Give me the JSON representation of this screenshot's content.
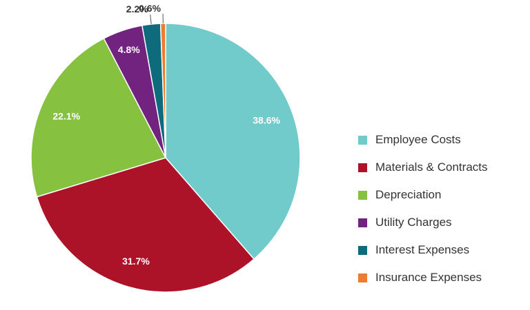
{
  "chart_data": {
    "type": "pie",
    "title": "",
    "slices": [
      {
        "label": "Employee Costs",
        "value": 38.6,
        "display": "38.6%",
        "color": "#72CBCB",
        "label_color": "#ffffff"
      },
      {
        "label": "Materials & Contracts",
        "value": 31.7,
        "display": "31.7%",
        "color": "#AD1328",
        "label_color": "#ffffff"
      },
      {
        "label": "Depreciation",
        "value": 22.1,
        "display": "22.1%",
        "color": "#86C240",
        "label_color": "#ffffff"
      },
      {
        "label": "Utility Charges",
        "value": 4.8,
        "display": "4.8%",
        "color": "#72237F",
        "label_color": "#ffffff"
      },
      {
        "label": "Interest Expenses",
        "value": 2.2,
        "display": "2.2%",
        "color": "#0D6B7C",
        "label_color": "#333333"
      },
      {
        "label": "Insurance Expenses",
        "value": 0.6,
        "display": "0.6%",
        "color": "#EE7C2F",
        "label_color": "#333333"
      }
    ],
    "legend_position": "right",
    "start_angle": "12 o'clock",
    "direction": "clockwise"
  }
}
